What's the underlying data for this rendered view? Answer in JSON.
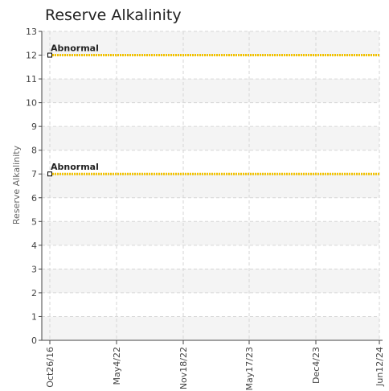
{
  "chart_data": {
    "type": "line",
    "title": "Reserve Alkalinity",
    "xlabel": "",
    "ylabel": "Reserve Alkalinity",
    "ylim": [
      0,
      13
    ],
    "yticks": [
      "0",
      "1",
      "2",
      "3",
      "4",
      "5",
      "6",
      "7",
      "8",
      "9",
      "10",
      "11",
      "12",
      "13"
    ],
    "xticks": [
      "Oct26/16",
      "May4/22",
      "Nov18/22",
      "May17/23",
      "Dec4/23",
      "Jun12/24"
    ],
    "grid": true,
    "legend": "none",
    "series": [
      {
        "values": [
          12,
          12,
          12,
          12,
          12,
          12
        ],
        "color": "#f2c200"
      },
      {
        "values": [
          7,
          7,
          7,
          7,
          7,
          7
        ],
        "color": "#f2c200"
      }
    ],
    "annotations": [
      {
        "text": "Abnormal",
        "x": "Oct26/16",
        "y": 12
      },
      {
        "text": "Abnormal",
        "x": "Oct26/16",
        "y": 7
      }
    ],
    "colors": {
      "band": "#f4f4f4",
      "grid": "#d6d6d6",
      "axis": "#444444",
      "line": "#f2c200"
    }
  }
}
